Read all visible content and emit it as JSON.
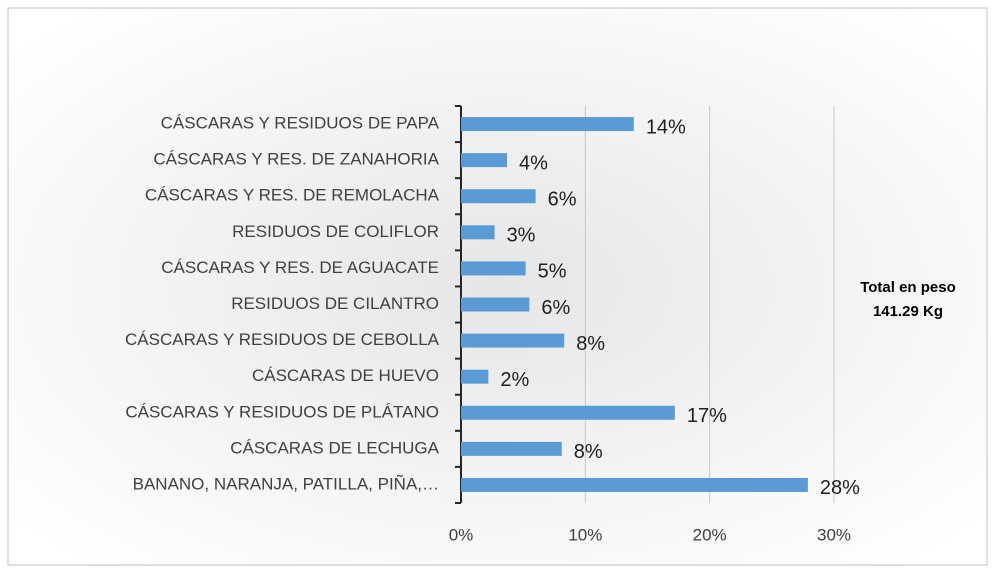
{
  "chart_data": {
    "type": "bar",
    "orientation": "horizontal",
    "categories": [
      "CÁSCARAS Y RESIDUOS DE PAPA",
      "CÁSCARAS Y RES. DE ZANAHORIA",
      "CÁSCARAS Y RES. DE REMOLACHA",
      "RESIDUOS DE COLIFLOR",
      "CÁSCARAS Y RES. DE AGUACATE",
      "RESIDUOS DE CILANTRO",
      "CÁSCARAS Y RESIDUOS DE CEBOLLA",
      "CÁSCARAS DE HUEVO",
      "CÁSCARAS Y RESIDUOS DE PLÁTANO",
      "CÁSCARAS DE LECHUGA",
      "BANANO, NARANJA, PATILLA, PIÑA,…"
    ],
    "values": [
      13.9,
      3.7,
      6.0,
      2.7,
      5.2,
      5.5,
      8.3,
      2.2,
      17.2,
      8.1,
      27.9
    ],
    "value_labels": [
      "14%",
      "4%",
      "6%",
      "3%",
      "5%",
      "6%",
      "8%",
      "2%",
      "17%",
      "8%",
      "28%"
    ],
    "color": "#5b9bd5",
    "xlim": [
      0,
      30
    ],
    "xticks": [
      {
        "value": 0,
        "label": "0%"
      },
      {
        "value": 10,
        "label": "10%"
      },
      {
        "value": 20,
        "label": "20%"
      },
      {
        "value": 30,
        "label": "30%"
      }
    ],
    "grid": true,
    "annotation": [
      "Total en peso",
      "141.29 Kg"
    ]
  }
}
